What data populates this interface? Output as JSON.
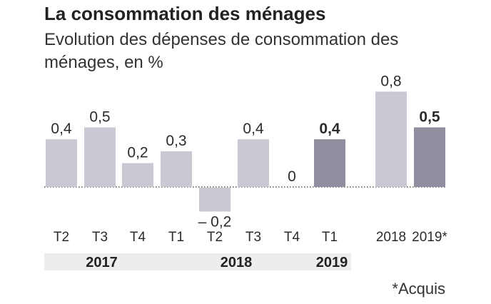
{
  "header": {
    "title": "La consommation des ménages",
    "subtitle": "Evolution des dépenses de consommation des ménages, en %"
  },
  "footnote": "*Acquis",
  "colors": {
    "bar_light": "#c9c9d3",
    "bar_dark": "#8e8e9e",
    "year_band": "#ededed",
    "zero_line": "#555555"
  },
  "chart_data": {
    "type": "bar",
    "title": "La consommation des ménages",
    "subtitle": "Evolution des dépenses de consommation des ménages, en %",
    "xlabel": "",
    "ylabel": "",
    "ylim": [
      -0.2,
      0.8
    ],
    "grid": false,
    "legend": "none",
    "categories": [
      "T2",
      "T3",
      "T4",
      "T1",
      "T2",
      "T3",
      "T4",
      "T1",
      "2018",
      "2019*"
    ],
    "values": [
      0.4,
      0.5,
      0.2,
      0.3,
      -0.2,
      0.4,
      0,
      0.4,
      0.8,
      0.5
    ],
    "value_labels": [
      "0,4",
      "0,5",
      "0,2",
      "0,3",
      "– 0,2",
      "0,4",
      "0",
      "0,4",
      "0,8",
      "0,5"
    ],
    "highlighted": [
      false,
      false,
      false,
      false,
      false,
      false,
      false,
      true,
      false,
      true
    ],
    "year_groups": [
      {
        "label": "2017",
        "first": 0,
        "last": 2
      },
      {
        "label": "2018",
        "first": 3,
        "last": 6
      },
      {
        "label": "2019",
        "first": 7,
        "last": 7
      }
    ]
  }
}
